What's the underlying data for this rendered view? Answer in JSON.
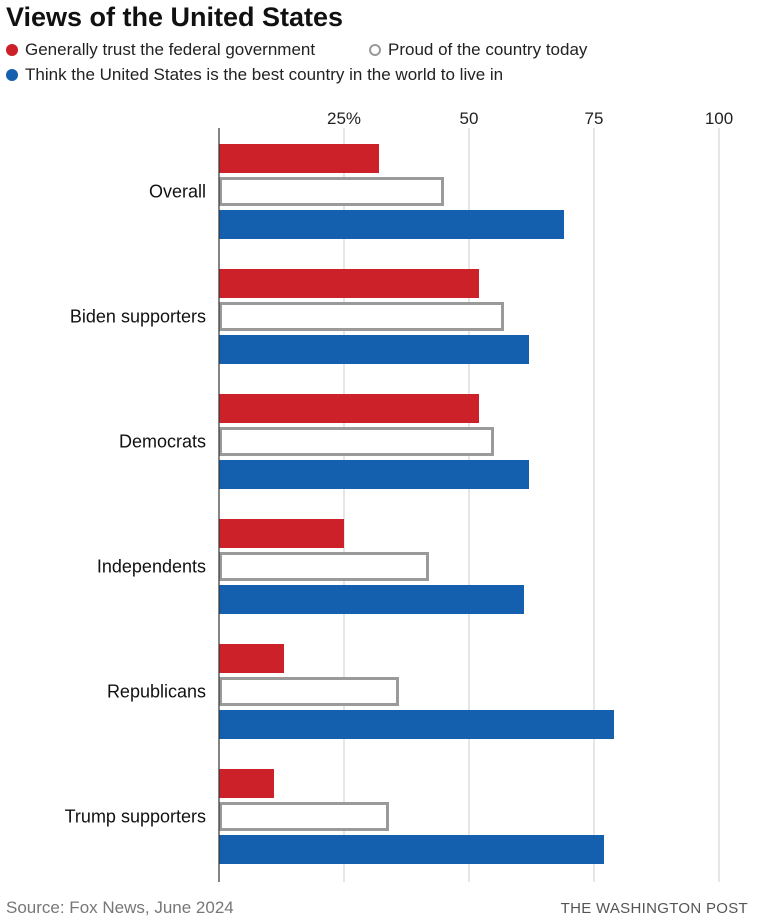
{
  "chart_data": {
    "type": "bar",
    "orientation": "horizontal",
    "title": "Views of the United States",
    "categories": [
      "Overall",
      "Biden supporters",
      "Democrats",
      "Independents",
      "Republicans",
      "Trump supporters"
    ],
    "series": [
      {
        "name": "Generally trust the federal government",
        "color": "#cc2128",
        "style": "filled",
        "values": [
          32,
          52,
          52,
          25,
          13,
          11
        ]
      },
      {
        "name": "Proud of the country today",
        "color": "#9a9a9a",
        "style": "outline",
        "values": [
          45,
          57,
          55,
          42,
          36,
          34
        ]
      },
      {
        "name": "Think the United States is the best country in the world to live in",
        "color": "#1460ae",
        "style": "filled",
        "values": [
          69,
          62,
          62,
          61,
          79,
          77
        ]
      }
    ],
    "xlim": [
      0,
      100
    ],
    "xticks": [
      25,
      50,
      75,
      100
    ],
    "xtick_labels": [
      "25%",
      "50",
      "75",
      "100"
    ],
    "grid": true,
    "legend": "top",
    "source": "Source: Fox News, June 2024",
    "credit": "THE WASHINGTON POST"
  }
}
